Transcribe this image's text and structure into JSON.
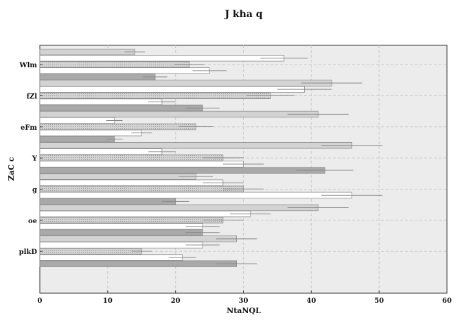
{
  "chart_data": {
    "type": "bar",
    "orientation": "horizontal",
    "title": "J kha q",
    "xlabel": "NtaNQL",
    "ylabel": "ZaC c",
    "xlim": [
      0,
      60
    ],
    "xticks": [
      "0",
      "10",
      "20",
      "30",
      "40",
      "50",
      "60"
    ],
    "grid": true,
    "categories": [
      "Wlm",
      "fZl",
      "eFm",
      "Y",
      "g",
      "oe",
      "plkD"
    ],
    "series": [
      {
        "pattern": "solid",
        "color": "#d3d3d3",
        "values": [
          14,
          43,
          41,
          46,
          23,
          41,
          29
        ],
        "errors": [
          1.5,
          4.5,
          4.5,
          4.5,
          2.5,
          4.5,
          3
        ]
      },
      {
        "pattern": "solid",
        "color": "#ffffff",
        "values": [
          36,
          39,
          11,
          18,
          27,
          31,
          24
        ],
        "errors": [
          3.5,
          4,
          1.2,
          2,
          3,
          3,
          2.5
        ]
      },
      {
        "pattern": "dotted",
        "color": "#d3d3d3",
        "values": [
          22,
          34,
          23,
          27,
          30,
          27,
          15
        ],
        "errors": [
          2.2,
          3.5,
          2.5,
          3,
          3,
          3,
          1.5
        ]
      },
      {
        "pattern": "solid",
        "color": "#ffffff",
        "values": [
          25,
          18,
          15,
          30,
          46,
          24,
          21
        ],
        "errors": [
          2.5,
          2,
          1.5,
          3,
          4.5,
          2.5,
          2
        ]
      },
      {
        "pattern": "solid",
        "color": "#a9a9a9",
        "values": [
          17,
          24,
          11,
          42,
          20,
          24,
          29
        ],
        "errors": [
          1.8,
          2.5,
          1.2,
          4.2,
          2,
          2.5,
          3
        ]
      }
    ]
  }
}
